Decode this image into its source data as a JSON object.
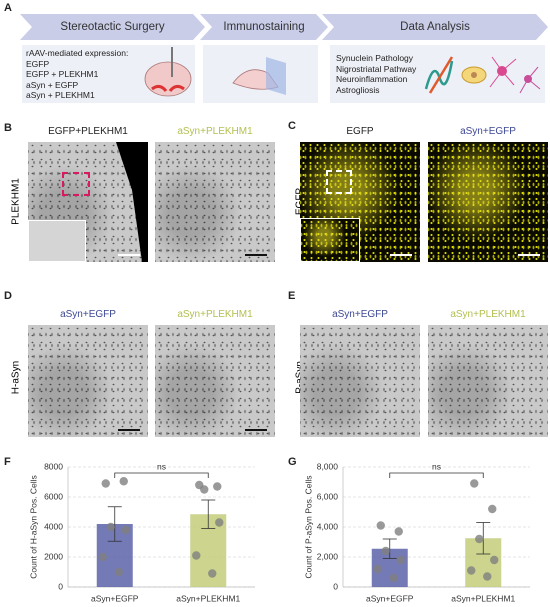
{
  "panel_labels": [
    "A",
    "B",
    "C",
    "D",
    "E",
    "F",
    "G"
  ],
  "workflow": {
    "steps": [
      "Stereotactic Surgery",
      "Immunostaining",
      "Data Analysis"
    ],
    "expression_title": "rAAV-mediated expression:",
    "groups": [
      "EGFP",
      "EGFP + PLEKHM1",
      "aSyn + EGFP",
      "aSyn + PLEKHM1"
    ],
    "analyses": [
      "Synuclein Pathology",
      "Nigrostriatal Pathway",
      "Neuroinflammation",
      "Astrogliosis"
    ]
  },
  "images": {
    "B": {
      "row_label": "PLEKHM1",
      "titles": [
        "EGFP+PLEKHM1",
        "aSyn+PLEKHM1"
      ]
    },
    "C": {
      "row_label": "EGFP",
      "titles": [
        "EGFP",
        "aSyn+EGFP"
      ]
    },
    "D": {
      "row_label": "H-aSyn",
      "titles": [
        "aSyn+EGFP",
        "aSyn+PLEKHM1"
      ]
    },
    "E": {
      "row_label": "P-aSyn",
      "titles": [
        "aSyn+EGFP",
        "aSyn+PLEKHM1"
      ]
    }
  },
  "chart_data": [
    {
      "type": "bar",
      "y_label": "Count of H-aSyn Pos. Cells",
      "categories": [
        "aSyn+EGFP",
        "aSyn+PLEKHM1"
      ],
      "values": [
        4200,
        4850
      ],
      "errors": [
        1150,
        950
      ],
      "points": [
        [
          6900,
          7050,
          4000,
          3800,
          2000,
          1000
        ],
        [
          6800,
          6700,
          6500,
          4300,
          2100,
          900
        ]
      ],
      "colors": [
        "#5b63a8",
        "#c3cc79"
      ],
      "point_color": "#808080",
      "significance": "ns",
      "ylim": [
        0,
        8000
      ],
      "yticks": [
        0,
        2000,
        4000,
        6000,
        8000
      ],
      "grid": true
    },
    {
      "type": "bar",
      "y_label": "Count of P-aSyn Pos. Cells",
      "categories": [
        "aSyn+EGFP",
        "aSyn+PLEKHM1"
      ],
      "values": [
        2550,
        3250
      ],
      "errors": [
        650,
        1050
      ],
      "points": [
        [
          4100,
          3700,
          2400,
          1800,
          1200,
          600
        ],
        [
          6900,
          5200,
          3200,
          1800,
          1100,
          700
        ]
      ],
      "colors": [
        "#5b63a8",
        "#c3cc79"
      ],
      "point_color": "#808080",
      "significance": "ns",
      "ylim": [
        0,
        8000
      ],
      "yticks": [
        {
          "value": 0,
          "label": "0"
        },
        {
          "value": 2000,
          "label": "2,000"
        },
        {
          "value": 4000,
          "label": "4,000"
        },
        {
          "value": 6000,
          "label": "6,000"
        },
        {
          "value": 8000,
          "label": "8,000"
        }
      ],
      "grid": true
    }
  ]
}
